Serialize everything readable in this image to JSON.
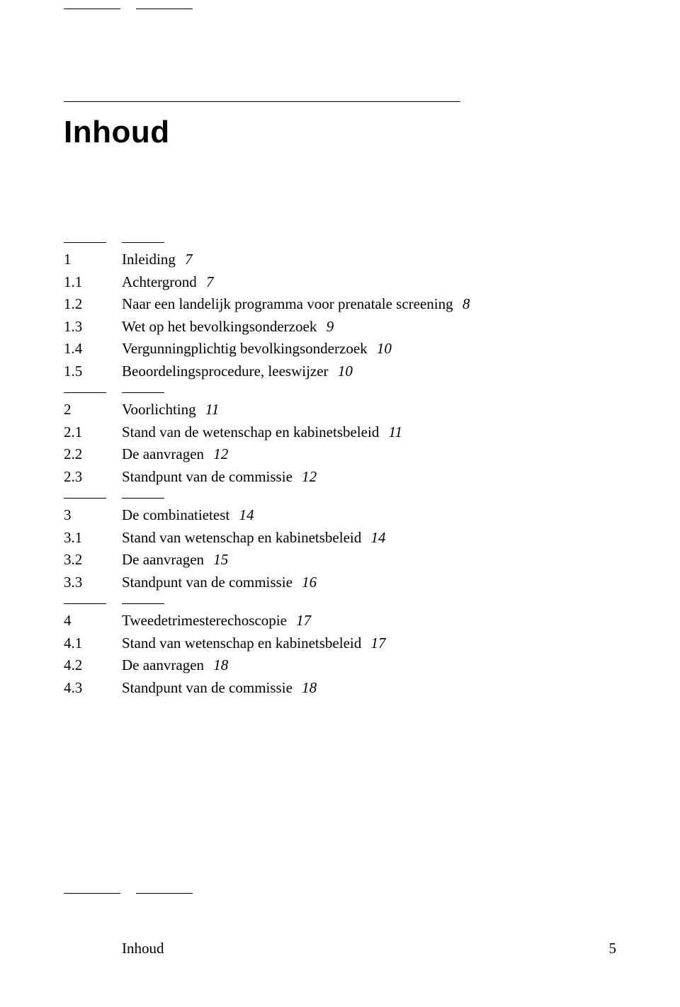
{
  "title": "Inhoud",
  "footer": {
    "label": "Inhoud",
    "page": "5"
  },
  "sections": [
    {
      "rows": [
        {
          "num": "1",
          "text": "Inleiding",
          "page": "7"
        },
        {
          "num": "1.1",
          "text": "Achtergrond",
          "page": "7"
        },
        {
          "num": "1.2",
          "text": "Naar een landelijk programma voor prenatale screening",
          "page": "8"
        },
        {
          "num": "1.3",
          "text": "Wet op het bevolkingsonderzoek",
          "page": "9"
        },
        {
          "num": "1.4",
          "text": "Vergunningplichtig bevolkingsonderzoek",
          "page": "10"
        },
        {
          "num": "1.5",
          "text": "Beoordelingsprocedure, leeswijzer",
          "page": "10"
        }
      ]
    },
    {
      "rows": [
        {
          "num": "2",
          "text": "Voorlichting",
          "page": "11"
        },
        {
          "num": "2.1",
          "text": "Stand van de wetenschap en kabinetsbeleid",
          "page": "11"
        },
        {
          "num": "2.2",
          "text": "De aanvragen",
          "page": "12"
        },
        {
          "num": "2.3",
          "text": "Standpunt van de commissie",
          "page": "12"
        }
      ]
    },
    {
      "rows": [
        {
          "num": "3",
          "text": "De combinatietest",
          "page": "14"
        },
        {
          "num": "3.1",
          "text": "Stand van wetenschap en kabinetsbeleid",
          "page": "14"
        },
        {
          "num": "3.2",
          "text": "De aanvragen",
          "page": "15"
        },
        {
          "num": "3.3",
          "text": "Standpunt van de commissie",
          "page": "16"
        }
      ]
    },
    {
      "rows": [
        {
          "num": "4",
          "text": "Tweedetrimesterechoscopie",
          "page": "17"
        },
        {
          "num": "4.1",
          "text": "Stand van wetenschap en kabinetsbeleid",
          "page": "17"
        },
        {
          "num": "4.2",
          "text": "De aanvragen",
          "page": "18"
        },
        {
          "num": "4.3",
          "text": "Standpunt van de commissie",
          "page": "18"
        }
      ]
    }
  ]
}
